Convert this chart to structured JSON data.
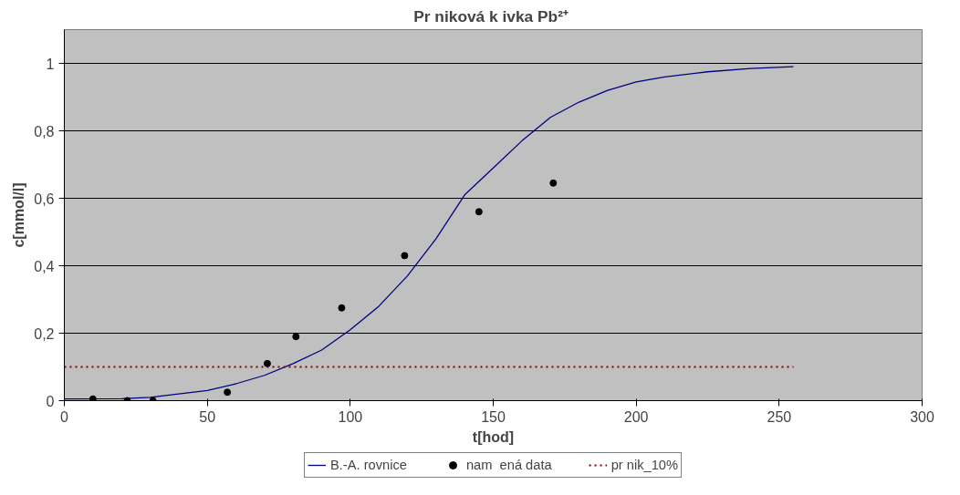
{
  "chart_data": {
    "type": "line",
    "title": "Pr  niková k ivka Pb²⁺",
    "xlabel": "t[hod]",
    "ylabel": "c[mmol/l]",
    "xlim": [
      0,
      300
    ],
    "xticks": [
      0,
      50,
      100,
      150,
      200,
      250,
      300
    ],
    "ylim": [
      0,
      1.1
    ],
    "yticks": [
      0,
      {
        "value": 0.2,
        "label": "0,2"
      },
      {
        "value": 0.4,
        "label": "0,4"
      },
      {
        "value": 0.6,
        "label": "0,6"
      },
      {
        "value": 0.8,
        "label": "0,8"
      },
      1
    ],
    "grid": "y",
    "legend": "bottom",
    "series": [
      {
        "name": "B.-A. rovnice",
        "color": "#000080",
        "line_style": "solid",
        "x": [
          0,
          20,
          30,
          40,
          50,
          60,
          70,
          80,
          90,
          100,
          110,
          120,
          130,
          140,
          150,
          160,
          170,
          180,
          190,
          200,
          210,
          225,
          240,
          255
        ],
        "values": [
          0.005,
          0.006,
          0.01,
          0.02,
          0.03,
          0.05,
          0.075,
          0.11,
          0.15,
          0.21,
          0.28,
          0.37,
          0.48,
          0.61,
          0.69,
          0.77,
          0.84,
          0.885,
          0.92,
          0.945,
          0.96,
          0.975,
          0.985,
          0.99
        ]
      },
      {
        "name": "nam  ená data",
        "type": "scatter",
        "color": "#000000",
        "marker": "circle",
        "x": [
          10,
          22,
          31,
          57,
          71,
          81,
          97,
          119,
          145,
          171
        ],
        "values": [
          0.005,
          0,
          0,
          0.025,
          0.11,
          0.19,
          0.275,
          0.43,
          0.56,
          0.645
        ]
      },
      {
        "name": "pr nik_10%",
        "color": "#800000",
        "line_style": "dotted",
        "x": [
          0,
          255
        ],
        "values": [
          0.1,
          0.1
        ]
      }
    ]
  }
}
